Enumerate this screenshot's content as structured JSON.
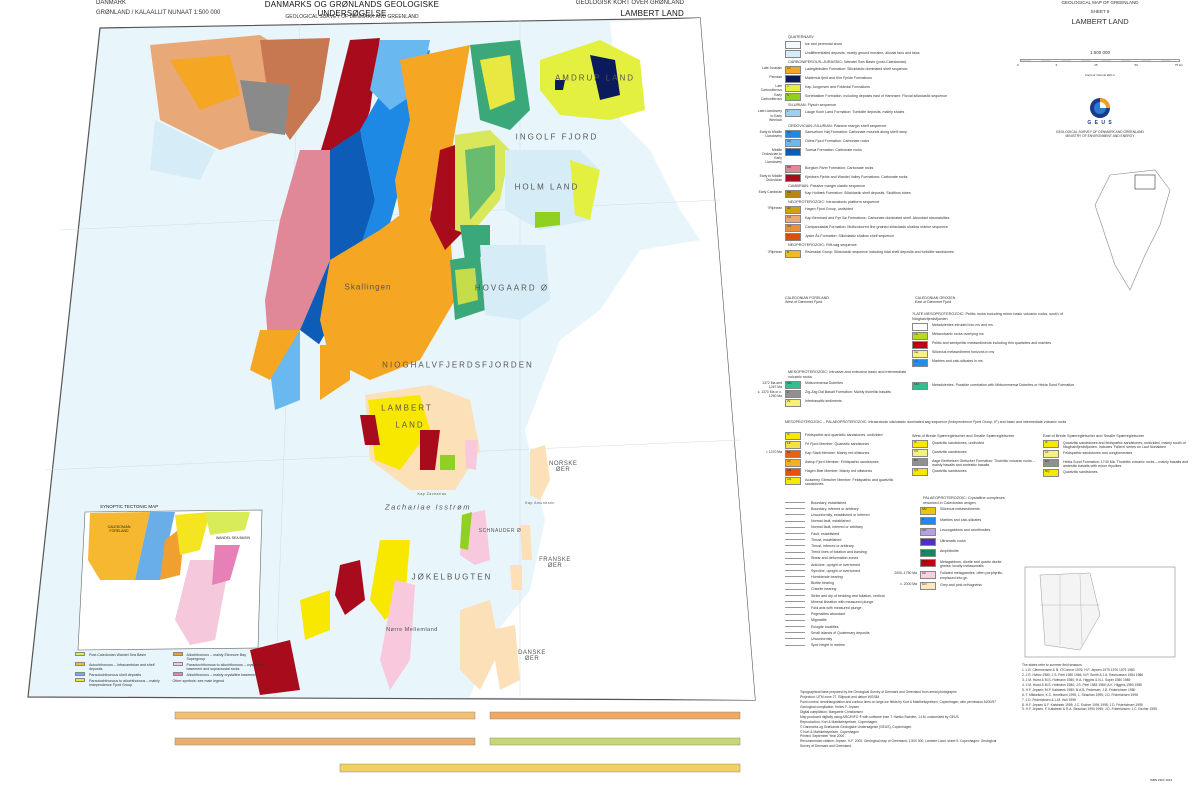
{
  "header": {
    "left_line1": "DANMARK",
    "left_line2": "GRØNLAND / KALAALLIT NUNAAT 1:500 000",
    "center_title": "DANMARKS OG GRØNLANDS GEOLOGISKE UNDERSØGELSE",
    "center_subtitle": "GEOLOGICAL SURVEY OF DENMARK AND GREENLAND",
    "right_line1": "GEOLOGISK KORT OVER GRØNLAND",
    "right_line2": "LAMBERT LAND"
  },
  "right_panel": {
    "map_title": "GEOLOGICAL MAP OF GREENLAND",
    "sheet": "SHEET 9",
    "sheet_name": "LAMBERT LAND",
    "scale": "1:500 000",
    "scale_ticks": [
      "0",
      "5",
      "25",
      "50",
      "75 km"
    ],
    "contour": "Contour interval 200 m",
    "logo_text": "G E U S",
    "org1": "GEOLOGICAL SURVEY OF DENMARK AND GREENLAND",
    "org2": "MINISTRY OF ENVIRONMENT AND ENERGY",
    "logo_colors": {
      "dark": "#1a3a8a",
      "light": "#2a7ad0",
      "accent": "#f0a020"
    }
  },
  "map_labels": {
    "ingolf": "INGOLF FJORD",
    "holm": "HOLM LAND",
    "amdrup": "AMDRUP LAND",
    "hovgaard": "HOVGAARD Ø",
    "skallingen": "Skallingen",
    "nioghalv": "NIOGHALVFJERDSFJORDEN",
    "lambert1": "LAMBERT",
    "lambert2": "LAND",
    "norske": "NORSKE ØER",
    "zachariae": "Zachariae Isstrøm",
    "schnauder": "SCHNAUDER Ø",
    "franske": "FRANSKE ØER",
    "jokel": "JØKELBUGTEN",
    "norre": "Nørre Mellemland",
    "danske": "DANSKE ØER",
    "kap_amundsen": "Kap Amundsen",
    "kap_zacharias": "Kap Zacharias"
  },
  "inset": {
    "title": "SYNOPTIC TECTONIC MAP",
    "foreland": "CALEDONIAN FORELAND",
    "wandel": "WANDEL SEA BASIN",
    "legend": [
      {
        "color": "#d8ec5a",
        "label": "Post-Caledonian Wandel Sea Basin"
      },
      {
        "color": "#f5b830",
        "label": "Autochthonous – Infracambrian and shelf deposits"
      },
      {
        "color": "#6aaee8",
        "label": "Parautochthonous shelf deposits"
      },
      {
        "color": "#f5e420",
        "label": "Parautochthonous to allochthonous – mainly Independence Fjord Group"
      },
      {
        "color": "#f0a030",
        "label": "Allochthonous – mainly Eleonore Bay Supergroup"
      },
      {
        "color": "#f5c8dc",
        "label": "Parautochthonous to allochthonous – crystalline basement and supracrustal rocks"
      },
      {
        "color": "#e880b8",
        "label": "Allochthonous – mainly crystalline basement"
      },
      {
        "color": "#ffffff",
        "label": "Other symbols: see main legend"
      }
    ]
  },
  "legend": {
    "quaternary_title": "QUATERNARY",
    "quaternary": [
      {
        "color": "#f2fafd",
        "label": "Ice and perennial snow"
      },
      {
        "color": "#d6ecf6",
        "label": "Undifferentiated deposits, mostly ground moraine, alluvial fans and talus"
      }
    ],
    "groups": [
      {
        "title": "CARBONIFEROUS–JURASSIC: Wandel Sea Basin (post-Caledonian)",
        "items": [
          {
            "age": "Late Jurassic",
            "code": "LA",
            "color": "#f5a623",
            "label": "Ladegårdsåen Formation: Siliciclastic dominated shelf sequence"
          },
          {
            "age": "Permian",
            "code": "",
            "color": "#0a1a5a",
            "label": "Mallemuk fjeld and Kim Fjelde Formations"
          },
          {
            "age": "Late Carboniferous",
            "code": "J",
            "color": "#e4f040",
            "label": "Kap Jungersen and Foldedal Formations"
          },
          {
            "age": "Early Carboniferous",
            "code": "S",
            "color": "#90d020",
            "label": "Sortebakker Formation, including deposits east of Hamnsen: Fluvial siliciclastic sequence"
          }
        ]
      },
      {
        "title": "SILURIAN: Flysch sequence",
        "items": [
          {
            "age": "Late Llandovery to Early Wenlock",
            "code": "L",
            "color": "#9ad0f0",
            "label": "Lauge Koch Land Formation: Turbidite deposits, mainly shales"
          }
        ]
      },
      {
        "title": "ORDOVICIAN–SILURIAN: Passive margin shelf sequence",
        "items": [
          {
            "age": "Early to Middle Llandovery",
            "code": "SH",
            "color": "#1e88e5",
            "label": "Samuelsen Høj Formation: Carbonate mounds along shelf ramp"
          },
          {
            "age": "",
            "code": "OF",
            "color": "#6ab8f0",
            "label": "Odins Fjord Formation: Carbonate rocks"
          },
          {
            "age": "Middle Ordovician to Early Llandovery",
            "code": "TU",
            "color": "#0d5cb8",
            "label": "Turesø Formation: Carbonate rocks"
          },
          {
            "age": "",
            "code": "BR",
            "color": "#e08898",
            "label": "Borglum River Formation: Carbonate rocks"
          },
          {
            "age": "Early to Middle Ordovician",
            "code": "W",
            "color": "#a80c1c",
            "label": "Kjeldsen Fjelde and Wandel Valley Formations: Carbonate rocks"
          }
        ]
      },
      {
        "title": "CAMBRIAN: Passive margin clastic sequence",
        "items": [
          {
            "age": "Early Cambrian",
            "code": "KH",
            "color": "#b8860b",
            "label": "Kap Holbæk Formation: Siliciclastic shelf deposits. Skolithos tubes"
          }
        ]
      },
      {
        "title": "NEOPROTEROZOIC: Intracratonic platform sequence",
        "items": [
          {
            "age": "?Riphean",
            "code": "HF",
            "color": "#d4a010",
            "label": "Hagen Fjord Group, undivided"
          },
          {
            "age": "",
            "code": "FH",
            "color": "#e8a878",
            "label": "Kap Bernhard and Fyn Sø Formations: Carbonate dominated shelf. Abundant stromatolites"
          },
          {
            "age": "",
            "code": "CD",
            "color": "#e89040",
            "label": "Campanuladal Formation: Multicoloured fine grained siliciclastic shallow marine sequence"
          },
          {
            "age": "",
            "code": "J",
            "color": "#d85010",
            "label": "Jyske Ås Formation: Siliciclastic shallow shelf sequence"
          }
        ]
      },
      {
        "title": "NEOPROTEROZOIC: Rift-sag sequence",
        "items": [
          {
            "age": "?Riphean",
            "code": "R",
            "color": "#f5b820",
            "label": "Rivieradal Group: Siliciclastic sequence including tidal shelf deposits and turbidite sandstones"
          }
        ]
      }
    ],
    "foreland_title": "CALEDONIAN FORELAND",
    "foreland_sub": "West of Dæmmet Fjord",
    "orogen_title": "CALEDONIAN OROGEN",
    "orogen_sub": "East of Dæmmet Fjord",
    "late_meso_title": "?LATE MESOPROTEROZOIC: Pelitic rocks including minor basic volcanic rocks, south of Nioghalvfjerdsfjorden",
    "late_meso": [
      {
        "code": "",
        "color": "#ffffff",
        "label": "Metadolerites intruded into mv and ms"
      },
      {
        "code": "mv",
        "color": "#b8d820",
        "label": "Metavolcanic rocks overlying ms"
      },
      {
        "code": "ms",
        "color": "#c00010",
        "label": "Pelitic and semipelitic metasediments including thin quartzites and marbles"
      },
      {
        "code": "mq",
        "color": "#f8f080",
        "label": "Siliceous metasediment horizons in ms"
      },
      {
        "code": "mc",
        "color": "#2090f0",
        "label": "Marbles and calc-silicates in ms"
      }
    ],
    "meso_volc_title": "MESOPROTEROZOIC: Intrusive and extrusive basic and intermediate volcanic rocks",
    "meso_volc": [
      {
        "age": "1372 Ma and 1267 Ma",
        "code": "MD",
        "color": "#30c090",
        "label": "Midsommersø Dolerites"
      },
      {
        "age": "c. 1370 Ma or c. 1250 Ma",
        "code": "Z",
        "color": "#909090",
        "label": "Zig-Zag Dal Basalt Formation: Mainly tholeiitic basalts"
      },
      {
        "age": "",
        "code": "Zs",
        "color": "#f8f070",
        "label": "Interbasaltic sediments"
      }
    ],
    "meso_orogen": [
      {
        "code": "MM",
        "color": "#30c090",
        "label": "Metadolerites. Possible correlation with Midsommersø Dolerites or Hekla Sund Formation"
      }
    ],
    "meso_palaeo_title": "MESOPROTEROZOIC – PALAEOPROTEROZOIC: Intracratonic siliciclastic dominated sag sequence (Independence Fjord Group, IF) and basic and intermediate volcanic rocks",
    "ifg": [
      {
        "age": "",
        "code": "IF",
        "color": "#f8e800",
        "label": "Feldspathic and quartzitic sandstones, undivided"
      },
      {
        "age": "",
        "code": "FF",
        "color": "#f8e040",
        "label": "Fri Fjord Member: Quartzitic sandstones"
      },
      {
        "age": "< 1370 Ma",
        "code": "BL",
        "color": "#e86010",
        "label": "Kap Sladt Member: Mainly red siltstones"
      },
      {
        "age": "",
        "code": "AF",
        "color": "#f8b020",
        "label": "Astrup Fjord Member: Feldspathic sandstones"
      },
      {
        "age": "",
        "code": "HB",
        "color": "#e85010",
        "label": "Hagen Bræ Member: Mainly red siltstones"
      },
      {
        "age": "",
        "code": "AG",
        "color": "#f8e800",
        "label": "Academy Gletscher Member: Feldspathic and quartzitic sandstones"
      }
    ],
    "ifg_mid_title": "West of Brede Spærregletscher and Smalle Spærregletscher",
    "ifg_mid": [
      {
        "code": "IF",
        "color": "#f8e800",
        "label": "Quartzitic sandstones, undivided"
      },
      {
        "code": "CS",
        "color": "#f8f080",
        "label": "Quartzitic sandstones"
      },
      {
        "code": "BV",
        "color": "#909090",
        "label": "Aage Berthelsen Gletscher Formation: Tholeiitic volcanic rocks – mainly basalts and andesitic basalts"
      },
      {
        "code": "QS",
        "color": "#f8e800",
        "label": "Quartzitic sandstones"
      }
    ],
    "ifg_right_title": "East of Brede Spærregletscher and Smalle Spærregletscher",
    "ifg_right": [
      {
        "code": "IF",
        "color": "#f8e800",
        "label": "Quartzitic sandstones and feldspathic sandstones, undivided, mainly south of Nioghalvfjerdsfjorden. Includes 'Fallent' series on Lauf Norlakken"
      },
      {
        "code": "LF",
        "color": "#f8f080",
        "label": "Feldspathic sandstones and conglomerates"
      },
      {
        "code": "BV",
        "color": "#909090",
        "label": "Hekla Sund Formation: 1740 Ma. Tholeiitic volcanic rocks – mainly basalts and andesitic basalts with minor rhyolites"
      },
      {
        "code": "RQ",
        "color": "#f8e800",
        "label": "Quartzitic sandstones"
      }
    ],
    "symbols": [
      "Boundary, established",
      "Boundary, inferred or arbitrary",
      "Unconformity, established or inferred",
      "Normal fault, established",
      "Normal fault, inferred or arbitrary",
      "Fault, established",
      "Thrust, established",
      "Thrust, inferred or arbitrary",
      "Trend lines of foliation and banding",
      "Shear and deformation zones",
      "Anticline, upright or overturned",
      "Syncline, upright or overturned",
      "Hornblende bearing",
      "Biotite bearing",
      "Chlorite bearing",
      "Strike and dip of bedding and foliation, vertical",
      "Mineral lineation with measured plunge",
      "Fold axis with measured plunge",
      "Pegmatites abundant",
      "Migmatite",
      "Eclogite localities",
      "Small islands of Quaternary deposits",
      "Unconformity",
      "Spot height in metres"
    ],
    "palaeo_title": "PALAEOPROTEROZOIC: Crystalline complexes reworked in Caledonian orogen",
    "palaeo": [
      {
        "age": "",
        "code": "SM",
        "color": "#e8c800",
        "label": "Siliceous metasediments"
      },
      {
        "age": "",
        "code": "C",
        "color": "#1e88f0",
        "label": "Marbles and calc-silicates"
      },
      {
        "age": "",
        "code": "GP",
        "color": "#b8a0e0",
        "label": "Leucogabbros and anorthosites"
      },
      {
        "age": "",
        "code": "U",
        "color": "#5030c0",
        "label": "Ultramafic rocks"
      },
      {
        "age": "",
        "code": "A",
        "color": "#108860",
        "label": "Amphibolite"
      },
      {
        "age": "",
        "code": "MG",
        "color": "#c00010",
        "label": "Metagabbros, diorite and quartz diorite gneiss; locally metasomatic"
      },
      {
        "age": "2000–1750 Ma",
        "code": "GF",
        "color": "#f8d0e0",
        "label": "Foliated metagranites, often porphyritic, emplaced into gn"
      },
      {
        "age": "c. 2000 Ma",
        "code": "GN",
        "color": "#fbe8c0",
        "label": "Grey and pink orthogneiss"
      }
    ]
  },
  "notes_heading": "The states refer to summer field seasons",
  "notes": [
    "1. L.B. Clemmensen & N. O'Connor 1976; H.F. Jepsen 1975 1976 1979 1980",
    "2. J.R. Hvitov 1980; J.S. Peel 1980 1984; N.P. Smith & J.A. Rasmussen 1984 1986",
    "3. J.M. Hurst & M.S. Hofmann 1980; H.A. Higgins & N.J. Soper 1980 1985",
    "4. J.M. Hurst & M.S. Hofmann 1980; J.S. Peel 1983 1984; A.K. Higgins 1980 1985",
    "5. H.F. Jepsen; M.P. Kalsbeek 1980; N.A.B. Pedersen; J.D. Friderichsen 1980",
    "6. T. Mikkelsen; K.C. Henriksen 1995; L. Strachan 1995; J.D. Friderichsen 1996",
    "7. J.D. Friderichsen & L.M. Hull 1995",
    "8. H.F. Jepsen & F. Kalsbeek 1995; J.C. Escher 1994 1995; J.D. Friderichsen 1995",
    "9. H.F. Jepsen, F. Kalsbeek & R.A. Strachan 1994 1995; J.D. Friderichsen; J.C. Escher 1995"
  ],
  "credits": [
    "Topographical base prepared by the Geological Survey of Denmark and Greenland from aerial photographs",
    "Projection: UTM zone 27. Ellipsoid and datum WGS84",
    "Point control, aerotriangulation and contour lines on large-ice fields by Kort & Matrikelstyrelsen, Copenhagen; with permission A200/97",
    "Geological compilation: Hvitov F. Jepsen",
    "Digital compilation: Margarete Christiansen",
    "Map produced digitally using ARC/INFO ® with software from T. Hørtko Sweden, 1:1M, customised by GEUS",
    "Reproduction: Kort & Matrikelstyrelsen, Copenhagen",
    "© Danmarks og Grønlands Geologiske Undersøgelse (GEUS), Copenhagen",
    "© Kort & Matrikelstyrelsen, Copenhagen",
    "Printed: September Year 2000",
    "Recommended citation: Jepsen, H.F. 2000: Geological map of Greenland, 1:500 000, Lambert Land, sheet 9. Copenhagen: Geological Survey of Denmark and Greenland."
  ],
  "footer_code": "ISBN 1997-1613"
}
